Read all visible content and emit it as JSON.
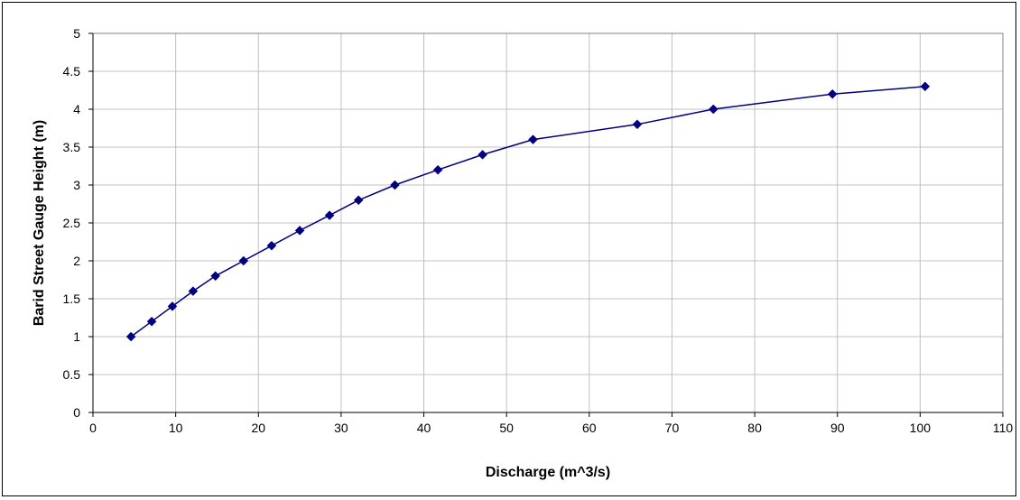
{
  "chart_data": {
    "type": "line",
    "title": "",
    "xlabel": "Discharge (m^3/s)",
    "ylabel": "Barid Street Gauge Height (m)",
    "xlim": [
      0,
      110
    ],
    "ylim": [
      0,
      5
    ],
    "x_ticks": [
      "0",
      "10",
      "20",
      "30",
      "40",
      "50",
      "60",
      "70",
      "80",
      "90",
      "100",
      "110"
    ],
    "y_ticks": [
      "0",
      "0.5",
      "1",
      "1.5",
      "2",
      "2.5",
      "3",
      "3.5",
      "4",
      "4.5",
      "5"
    ],
    "grid": true,
    "legend": "none",
    "marker": "diamond",
    "series": [
      {
        "color": "#000080",
        "x": [
          4.6,
          7.1,
          9.6,
          12.1,
          14.8,
          18.2,
          21.6,
          25.0,
          28.6,
          32.1,
          36.5,
          41.7,
          47.1,
          53.2,
          65.8,
          75.0,
          89.4,
          100.6
        ],
        "y": [
          1.0,
          1.2,
          1.4,
          1.6,
          1.8,
          2.0,
          2.2,
          2.4,
          2.6,
          2.8,
          3.0,
          3.2,
          3.4,
          3.6,
          3.8,
          4.0,
          4.2,
          4.3
        ]
      }
    ]
  }
}
